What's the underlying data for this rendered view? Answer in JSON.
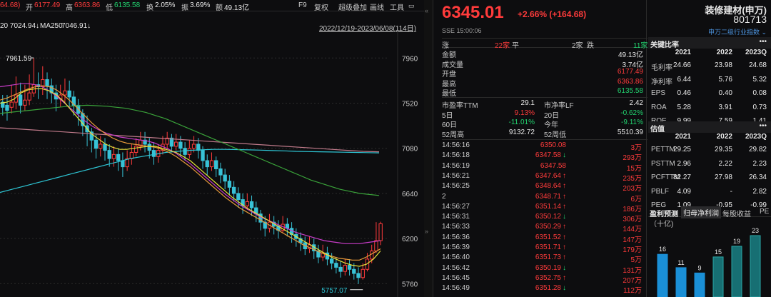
{
  "topbar": {
    "prev": "64.68)",
    "open_lbl": "开",
    "open": "6177.49",
    "high_lbl": "高",
    "high": "6363.86",
    "low_lbl": "低",
    "low": "6135.58",
    "turn_lbl": "换",
    "turn": "2.05%",
    "amp_lbl": "振",
    "amp": "3.69%",
    "amt_lbl": "额",
    "amt": "49.13亿",
    "f9": "F9",
    "fuquan": "复权",
    "overlay": "超级叠加",
    "draw": "画线",
    "tools": "工具"
  },
  "ma": {
    "ma20": "20 7024.94↓",
    "ma250_lbl": "MA250",
    "ma250": "7046.91↓",
    "range": "2022/12/19-2023/06/08(114日)"
  },
  "chart_data": {
    "type": "candlestick",
    "yticks": [
      "7960",
      "7520",
      "7080",
      "6640",
      "6200",
      "5760"
    ],
    "ylim": [
      5700,
      8150
    ],
    "high_label": "7961.59",
    "low_label": "5757.07",
    "candles": [
      [
        7530,
        7480,
        7600,
        7400
      ],
      [
        7500,
        7450,
        7600,
        7350
      ],
      [
        7480,
        7530,
        7700,
        7420
      ],
      [
        7530,
        7600,
        7780,
        7460
      ],
      [
        7600,
        7500,
        7720,
        7420
      ],
      [
        7500,
        7550,
        7700,
        7450
      ],
      [
        7550,
        7620,
        7800,
        7500
      ],
      [
        7620,
        7700,
        7960,
        7580
      ],
      [
        7700,
        7680,
        7820,
        7560
      ],
      [
        7680,
        7750,
        7880,
        7600
      ],
      [
        7750,
        7690,
        7820,
        7560
      ],
      [
        7690,
        7620,
        7760,
        7520
      ],
      [
        7620,
        7560,
        7700,
        7440
      ],
      [
        7560,
        7600,
        7700,
        7480
      ],
      [
        7600,
        7640,
        7760,
        7520
      ],
      [
        7640,
        7580,
        7740,
        7480
      ],
      [
        7580,
        7500,
        7640,
        7400
      ],
      [
        7500,
        7420,
        7560,
        7300
      ],
      [
        7420,
        7300,
        7460,
        7200
      ],
      [
        7300,
        7240,
        7400,
        7100
      ],
      [
        7240,
        7160,
        7280,
        7040
      ],
      [
        7160,
        7080,
        7220,
        6980
      ],
      [
        7080,
        7120,
        7200,
        7000
      ],
      [
        7120,
        7060,
        7180,
        6960
      ],
      [
        7060,
        6980,
        7120,
        6900
      ],
      [
        6980,
        7020,
        7100,
        6900
      ],
      [
        7020,
        6960,
        7080,
        6860
      ],
      [
        6960,
        6900,
        7040,
        6800
      ],
      [
        6900,
        6980,
        7060,
        6860
      ],
      [
        6980,
        7040,
        7120,
        6920
      ],
      [
        7040,
        7100,
        7180,
        7000
      ],
      [
        7100,
        7160,
        7240,
        7060
      ],
      [
        7160,
        7120,
        7240,
        7040
      ],
      [
        7120,
        7060,
        7180,
        6980
      ],
      [
        7060,
        7000,
        7140,
        6920
      ],
      [
        7000,
        7060,
        7120,
        6940
      ],
      [
        7060,
        7120,
        7200,
        7020
      ],
      [
        7120,
        7180,
        7240,
        7080
      ],
      [
        7180,
        7100,
        7220,
        7040
      ],
      [
        7100,
        7140,
        7220,
        7060
      ],
      [
        7140,
        7080,
        7200,
        7000
      ],
      [
        7080,
        7020,
        7140,
        6960
      ],
      [
        7020,
        7080,
        7160,
        6980
      ],
      [
        7080,
        7120,
        7200,
        7040
      ],
      [
        7120,
        7060,
        7180,
        6980
      ],
      [
        7060,
        6960,
        7100,
        6880
      ],
      [
        6960,
        6900,
        7020,
        6820
      ],
      [
        6900,
        6960,
        7040,
        6860
      ],
      [
        6960,
        6880,
        7000,
        6800
      ],
      [
        6880,
        6820,
        6940,
        6740
      ],
      [
        6820,
        6760,
        6880,
        6680
      ],
      [
        6760,
        6700,
        6820,
        6620
      ],
      [
        6700,
        6640,
        6760,
        6560
      ],
      [
        6640,
        6580,
        6700,
        6500
      ],
      [
        6580,
        6520,
        6640,
        6440
      ],
      [
        6520,
        6560,
        6640,
        6480
      ],
      [
        6560,
        6500,
        6620,
        6420
      ],
      [
        6500,
        6440,
        6560,
        6360
      ],
      [
        6440,
        6360,
        6480,
        6280
      ],
      [
        6360,
        6300,
        6420,
        6220
      ],
      [
        6300,
        6360,
        6440,
        6260
      ],
      [
        6360,
        6320,
        6420,
        6240
      ],
      [
        6320,
        6280,
        6380,
        6200
      ],
      [
        6280,
        6340,
        6420,
        6260
      ],
      [
        6340,
        6300,
        6400,
        6220
      ],
      [
        6300,
        6240,
        6360,
        6160
      ],
      [
        6240,
        6200,
        6300,
        6120
      ],
      [
        6200,
        6160,
        6260,
        6080
      ],
      [
        6160,
        6100,
        6220,
        6040
      ],
      [
        6100,
        6140,
        6220,
        6060
      ],
      [
        6140,
        6080,
        6200,
        6000
      ],
      [
        6080,
        6020,
        6140,
        5960
      ],
      [
        6020,
        6060,
        6140,
        5980
      ],
      [
        6060,
        6000,
        6120,
        5940
      ],
      [
        6000,
        5960,
        6060,
        5900
      ],
      [
        5960,
        5920,
        6020,
        5860
      ],
      [
        5920,
        5880,
        5980,
        5820
      ],
      [
        5880,
        5940,
        6000,
        5840
      ],
      [
        5940,
        5900,
        6000,
        5840
      ],
      [
        5900,
        5860,
        5960,
        5800
      ],
      [
        5860,
        5820,
        5920,
        5757
      ],
      [
        5820,
        5900,
        5960,
        5800
      ],
      [
        5900,
        6000,
        6060,
        5880
      ],
      [
        6000,
        6080,
        6140,
        5960
      ],
      [
        6080,
        6180,
        6360,
        6060
      ],
      [
        6180,
        6345,
        6364,
        6136
      ]
    ],
    "ma_yellow": [
      7520,
      7530,
      7560,
      7620,
      7650,
      7660,
      7660,
      7640,
      7600,
      7540,
      7460,
      7380,
      7300,
      7220,
      7170,
      7120,
      7090,
      7070,
      7070,
      7080,
      7090,
      7100,
      7100,
      7080,
      7060,
      7040,
      7000,
      6960,
      6900,
      6840,
      6780,
      6720,
      6660,
      6600,
      6550,
      6500,
      6460,
      6420,
      6380,
      6340,
      6300,
      6260,
      6220,
      6180,
      6140,
      6100,
      6060,
      6020,
      5990,
      5960,
      5940,
      5930,
      5950,
      6000,
      6080
    ],
    "ma_orange": [
      7550,
      7570,
      7600,
      7630,
      7660,
      7680,
      7690,
      7680,
      7650,
      7600,
      7540,
      7470,
      7400,
      7330,
      7270,
      7220,
      7180,
      7150,
      7130,
      7120,
      7110,
      7100,
      7090,
      7070,
      7040,
      7000,
      6950,
      6900,
      6840,
      6780,
      6720,
      6660,
      6600,
      6550,
      6500,
      6460,
      6420,
      6380,
      6340,
      6300,
      6260,
      6220,
      6180,
      6140,
      6110,
      6080,
      6050,
      6030,
      6010,
      6000,
      5990,
      5990,
      6020,
      6060,
      6100
    ],
    "ma_magenta": [
      7680,
      7690,
      7700,
      7710,
      7710,
      7700,
      7680,
      7640,
      7590,
      7530,
      7470,
      7410,
      7350,
      7300,
      7260,
      7230,
      7210,
      7190,
      7180,
      7170,
      7160,
      7150,
      7130,
      7100,
      7070,
      7030,
      6980,
      6930,
      6870,
      6810,
      6750,
      6690,
      6630,
      6580,
      6530,
      6490,
      6450,
      6410,
      6380,
      6350,
      6320,
      6290,
      6260,
      6240,
      6220,
      6200,
      6180,
      6170,
      6160,
      6150,
      6150,
      6150,
      6160,
      6170,
      6180
    ],
    "ma_green": [
      7420,
      7430,
      7440,
      7450,
      7460,
      7470,
      7480,
      7490,
      7495,
      7500,
      7495,
      7490,
      7480,
      7470,
      7450,
      7430,
      7400,
      7370,
      7330,
      7290,
      7250,
      7210,
      7170,
      7130,
      7090,
      7050,
      7010,
      6970,
      6930,
      6890,
      6850,
      6810,
      6770,
      6740,
      6710,
      6680,
      6660,
      6640,
      6630,
      6620
    ],
    "ma_brown": [
      7280,
      7270,
      7260,
      7250,
      7240,
      7230,
      7220,
      7210,
      7200,
      7190,
      7180,
      7170,
      7160,
      7150,
      7140,
      7130,
      7120,
      7110,
      7100,
      7090,
      7080,
      7070,
      7060,
      7050,
      7046
    ],
    "ma_white": [
      6650,
      6680,
      6710,
      6740,
      6770,
      6800,
      6830,
      6860,
      6890,
      6920,
      6950,
      6980,
      7000,
      7020,
      7040,
      7050,
      7060,
      7065,
      7070,
      7070,
      7068,
      7065,
      7062,
      7058,
      7055,
      7050,
      7048,
      7046,
      7044,
      7042,
      7040,
      7038,
      7036
    ]
  },
  "quote": {
    "price": "6345.01",
    "change": "+2.66% (+164.68)",
    "name": "装修建材(申万)",
    "code": "801713",
    "exchange": "SSE 15:00:06",
    "industry": "申万二级行业指数 ⌄",
    "updown": {
      "up_lbl": "涨",
      "up": "22家",
      "flat_lbl": "平",
      "flat": "2家",
      "down_lbl": "跌",
      "down": "11家"
    },
    "stats": [
      [
        "金额",
        "49.13亿",
        "wht"
      ],
      [
        "成交量",
        "3.74亿",
        "wht"
      ],
      [
        "开盘",
        "6177.49",
        "red"
      ],
      [
        "最高",
        "6363.86",
        "red"
      ],
      [
        "最低",
        "6135.58",
        "grn"
      ]
    ],
    "ratios": [
      [
        "市盈率TTM",
        "29.1",
        "市净率LF",
        "2.42",
        "wht",
        "wht"
      ],
      [
        "5日",
        "9.13%",
        "20日",
        "-0.62%",
        "red",
        "grn"
      ],
      [
        "60日",
        "-11.01%",
        "今年",
        "-9.11%",
        "grn",
        "grn"
      ],
      [
        "52周高",
        "9132.72",
        "52周低",
        "5510.39",
        "wht",
        "wht"
      ]
    ],
    "trades": [
      [
        "14:56:16",
        "6350.08",
        "",
        "3万"
      ],
      [
        "14:56:18",
        "6347.58",
        "↓",
        "293万"
      ],
      [
        "14:56:19",
        "6347.58",
        "",
        "15万"
      ],
      [
        "14:56:21",
        "6347.64",
        "↑",
        "235万"
      ],
      [
        "14:56:25",
        "6348.64",
        "↑",
        "203万"
      ],
      [
        "2",
        "6348.71",
        "↑",
        "6万"
      ],
      [
        "14:56:27",
        "6351.14",
        "↑",
        "186万"
      ],
      [
        "14:56:31",
        "6350.12",
        "↓",
        "306万"
      ],
      [
        "14:56:33",
        "6350.29",
        "↑",
        "144万"
      ],
      [
        "14:56:36",
        "6351.52",
        "↑",
        "147万"
      ],
      [
        "14:56:39",
        "6351.71",
        "↑",
        "179万"
      ],
      [
        "14:56:40",
        "6351.73",
        "↑",
        "5万"
      ],
      [
        "14:56:42",
        "6350.19",
        "↓",
        "131万"
      ],
      [
        "14:56:45",
        "6352.75",
        "↑",
        "207万"
      ],
      [
        "14:56:49",
        "6351.28",
        "↓",
        "112万"
      ]
    ]
  },
  "ratios_panel": {
    "title": "关键比率",
    "more": "•••",
    "years": [
      "2021",
      "2022",
      "2023Q"
    ],
    "rows": [
      [
        "毛利率",
        "24.66",
        "23.98",
        "24.68"
      ],
      [
        "净利率",
        "6.44",
        "5.76",
        "5.32"
      ],
      [
        "EPS",
        "0.46",
        "0.40",
        "0.08"
      ],
      [
        "ROA",
        "5.28",
        "3.91",
        "0.73"
      ],
      [
        "ROE",
        "9.99",
        "7.59",
        "1.41"
      ]
    ]
  },
  "valuation": {
    "title": "估值",
    "more": "•••",
    "years": [
      "2021",
      "2022",
      "2023Q"
    ],
    "rows": [
      [
        "PETTM",
        "29.25",
        "29.35",
        "29.82"
      ],
      [
        "PSTTM",
        "2.96",
        "2.22",
        "2.23"
      ],
      [
        "PCFTTM",
        "82.27",
        "27.98",
        "26.34"
      ],
      [
        "PBLF",
        "4.09",
        "-",
        "2.82"
      ],
      [
        "PEG",
        "1.09",
        "-0.95",
        "-0.99"
      ]
    ]
  },
  "profit": {
    "title": "盈利预测",
    "tabs": [
      "归母净利润",
      "每股收益",
      "PE"
    ],
    "unit": "（十亿)",
    "bars": [
      16,
      11,
      9,
      15,
      19,
      23
    ]
  }
}
